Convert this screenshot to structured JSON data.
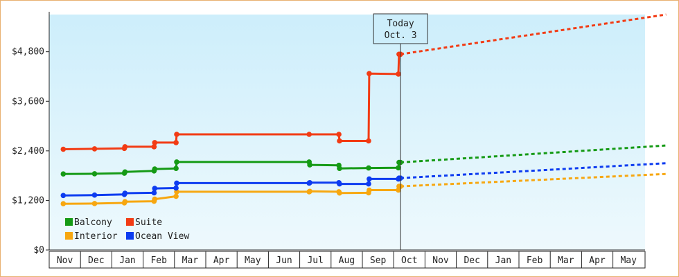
{
  "chart_data": {
    "type": "line",
    "title": "",
    "xlabel": "",
    "ylabel": "",
    "ylim": [
      0,
      5700
    ],
    "y_ticks": [
      0,
      1200,
      2400,
      3600,
      4800
    ],
    "y_tick_labels": [
      "$0",
      "$1,200",
      "$2,400",
      "$3,600",
      "$4,800"
    ],
    "x_tick_labels": [
      "Nov",
      "Dec",
      "Jan",
      "Feb",
      "Mar",
      "Apr",
      "May",
      "Jun",
      "Jul",
      "Aug",
      "Sep",
      "Oct",
      "Nov",
      "Dec",
      "Jan",
      "Feb",
      "Mar",
      "Apr",
      "May"
    ],
    "today_label_line1": "Today",
    "today_label_line2": "Oct. 3",
    "today_month_index": 10.72,
    "grid": false,
    "legend_position": "bottom-left",
    "background_gradient": [
      "#cdeefb",
      "#eef9fd"
    ],
    "series": [
      {
        "name": "Balcony",
        "color": "#159a15",
        "points": [
          [
            -0.05,
            1840
          ],
          [
            0.95,
            1845
          ],
          [
            1.9,
            1860
          ],
          [
            1.92,
            1890
          ],
          [
            2.85,
            1915
          ],
          [
            2.87,
            1960
          ],
          [
            3.55,
            1975
          ],
          [
            3.57,
            2130
          ],
          [
            7.8,
            2130
          ],
          [
            7.82,
            2060
          ],
          [
            8.75,
            2050
          ],
          [
            8.77,
            1975
          ],
          [
            9.7,
            1985
          ],
          [
            10.65,
            1990
          ],
          [
            10.67,
            2120
          ],
          [
            10.72,
            2120
          ]
        ],
        "forecast": [
          [
            10.72,
            2120
          ],
          [
            19.2,
            2530
          ]
        ]
      },
      {
        "name": "Suite",
        "color": "#f23b14",
        "points": [
          [
            -0.05,
            2440
          ],
          [
            0.95,
            2450
          ],
          [
            1.9,
            2460
          ],
          [
            1.92,
            2500
          ],
          [
            2.85,
            2500
          ],
          [
            2.87,
            2600
          ],
          [
            3.55,
            2600
          ],
          [
            3.57,
            2800
          ],
          [
            7.8,
            2800
          ],
          [
            8.75,
            2800
          ],
          [
            8.77,
            2640
          ],
          [
            9.7,
            2640
          ],
          [
            9.72,
            4270
          ],
          [
            10.65,
            4260
          ],
          [
            10.67,
            4740
          ],
          [
            10.72,
            4740
          ]
        ],
        "forecast": [
          [
            10.72,
            4740
          ],
          [
            19.2,
            5700
          ]
        ]
      },
      {
        "name": "Interior",
        "color": "#f7a710",
        "points": [
          [
            -0.05,
            1120
          ],
          [
            0.95,
            1125
          ],
          [
            1.9,
            1140
          ],
          [
            1.92,
            1170
          ],
          [
            2.85,
            1180
          ],
          [
            2.87,
            1230
          ],
          [
            3.55,
            1300
          ],
          [
            3.57,
            1410
          ],
          [
            7.8,
            1410
          ],
          [
            7.82,
            1420
          ],
          [
            8.75,
            1410
          ],
          [
            8.77,
            1380
          ],
          [
            9.7,
            1385
          ],
          [
            9.72,
            1450
          ],
          [
            10.65,
            1450
          ],
          [
            10.67,
            1540
          ],
          [
            10.72,
            1540
          ]
        ],
        "forecast": [
          [
            10.72,
            1540
          ],
          [
            19.2,
            1840
          ]
        ]
      },
      {
        "name": "Ocean View",
        "color": "#0d3cf0",
        "points": [
          [
            -0.05,
            1320
          ],
          [
            0.95,
            1330
          ],
          [
            1.9,
            1345
          ],
          [
            1.92,
            1375
          ],
          [
            2.85,
            1385
          ],
          [
            2.87,
            1490
          ],
          [
            3.55,
            1500
          ],
          [
            3.57,
            1620
          ],
          [
            7.8,
            1620
          ],
          [
            7.82,
            1630
          ],
          [
            8.75,
            1630
          ],
          [
            8.77,
            1600
          ],
          [
            9.7,
            1600
          ],
          [
            9.72,
            1720
          ],
          [
            10.65,
            1720
          ],
          [
            10.67,
            1740
          ],
          [
            10.72,
            1740
          ]
        ],
        "forecast": [
          [
            10.72,
            1740
          ],
          [
            19.2,
            2100
          ]
        ]
      }
    ]
  }
}
